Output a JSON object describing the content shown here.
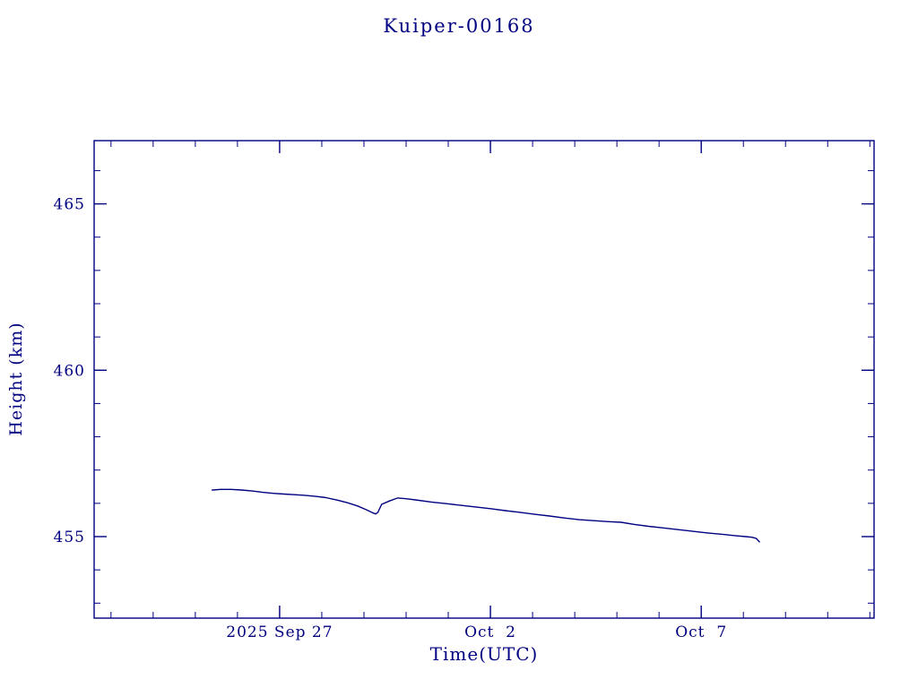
{
  "colors": {
    "ink": "#000080",
    "background": "#ffffff"
  },
  "chart_data": {
    "type": "line",
    "title": "Kuiper-00168",
    "xlabel": "Time(UTC)",
    "ylabel": "Height (km)",
    "x_unit_note": "days, 0 = 2025 Sep 27",
    "xlim": [
      -4.4,
      14.1
    ],
    "ylim": [
      452.55,
      466.9
    ],
    "grid": false,
    "legend": "none",
    "x_major_ticks": [
      {
        "x": 0,
        "label": "2025 Sep 27"
      },
      {
        "x": 5,
        "label": "Oct  2"
      },
      {
        "x": 10,
        "label": "Oct  7"
      }
    ],
    "x_minor_step": 1,
    "y_major_ticks": [
      {
        "y": 455,
        "label": "455"
      },
      {
        "y": 460,
        "label": "460"
      },
      {
        "y": 465,
        "label": "465"
      }
    ],
    "y_minor_step": 1,
    "series": [
      {
        "name": "height",
        "points": [
          [
            -1.6,
            456.4
          ],
          [
            -1.4,
            456.42
          ],
          [
            -1.15,
            456.42
          ],
          [
            -0.9,
            456.4
          ],
          [
            -0.65,
            456.37
          ],
          [
            -0.4,
            456.33
          ],
          [
            -0.15,
            456.3
          ],
          [
            0.1,
            456.28
          ],
          [
            0.35,
            456.26
          ],
          [
            0.6,
            456.24
          ],
          [
            0.85,
            456.21
          ],
          [
            1.1,
            456.17
          ],
          [
            1.35,
            456.1
          ],
          [
            1.6,
            456.02
          ],
          [
            1.85,
            455.92
          ],
          [
            2.05,
            455.81
          ],
          [
            2.2,
            455.72
          ],
          [
            2.28,
            455.68
          ],
          [
            2.33,
            455.73
          ],
          [
            2.42,
            455.97
          ],
          [
            2.6,
            456.07
          ],
          [
            2.8,
            456.16
          ],
          [
            3.0,
            456.14
          ],
          [
            3.3,
            456.09
          ],
          [
            3.6,
            456.04
          ],
          [
            3.95,
            455.99
          ],
          [
            4.3,
            455.94
          ],
          [
            4.65,
            455.89
          ],
          [
            5.0,
            455.84
          ],
          [
            5.35,
            455.78
          ],
          [
            5.7,
            455.73
          ],
          [
            6.05,
            455.67
          ],
          [
            6.4,
            455.62
          ],
          [
            6.75,
            455.56
          ],
          [
            7.1,
            455.51
          ],
          [
            7.45,
            455.48
          ],
          [
            7.8,
            455.45
          ],
          [
            8.1,
            455.43
          ],
          [
            8.4,
            455.37
          ],
          [
            8.75,
            455.31
          ],
          [
            9.1,
            455.26
          ],
          [
            9.45,
            455.21
          ],
          [
            9.8,
            455.16
          ],
          [
            10.15,
            455.11
          ],
          [
            10.5,
            455.07
          ],
          [
            10.8,
            455.03
          ],
          [
            11.05,
            455.0
          ],
          [
            11.2,
            454.98
          ],
          [
            11.3,
            454.95
          ],
          [
            11.38,
            454.84
          ]
        ]
      }
    ]
  }
}
